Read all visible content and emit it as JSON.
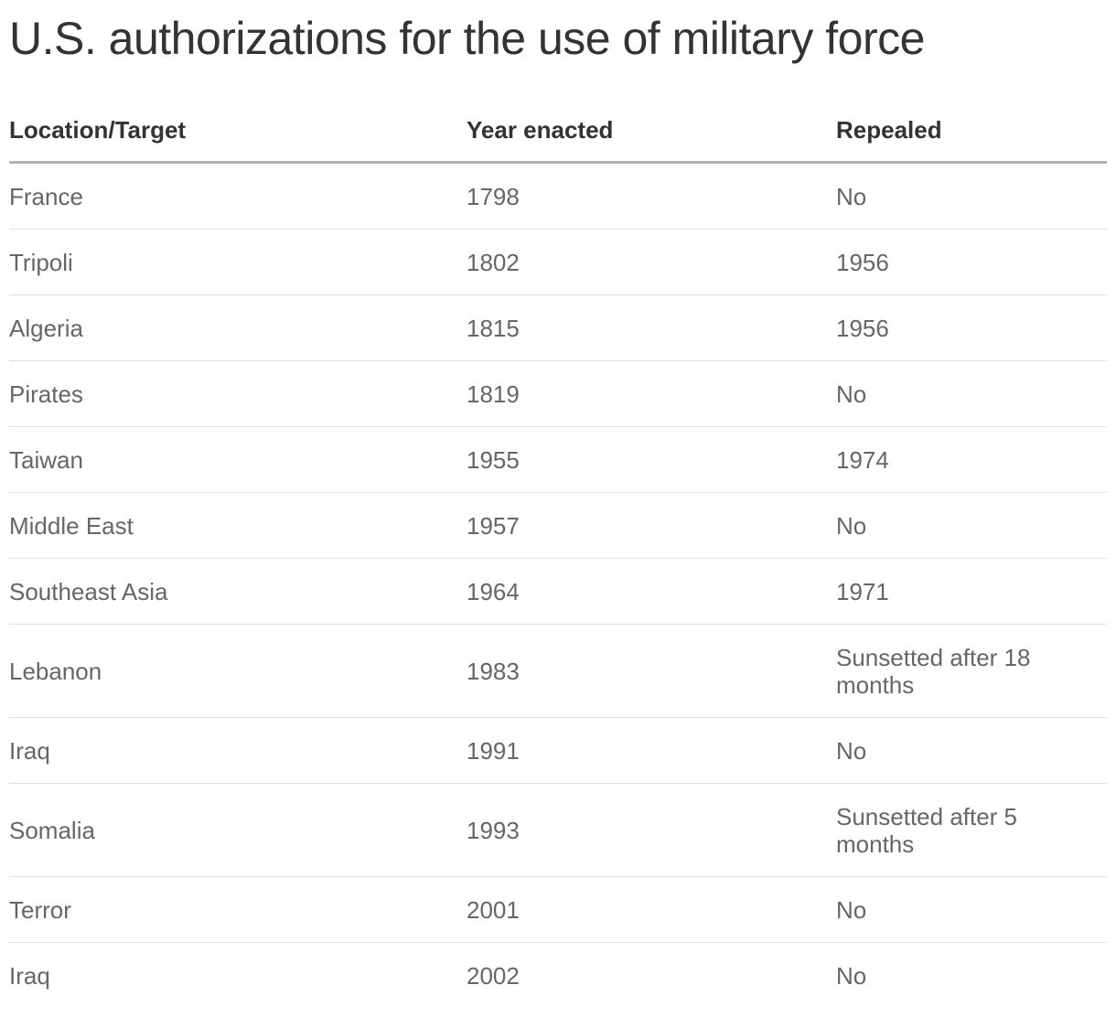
{
  "title": "U.S. authorizations for the use of military force",
  "chart_data": {
    "type": "table",
    "columns": [
      "Location/Target",
      "Year enacted",
      "Repealed"
    ],
    "rows": [
      [
        "France",
        "1798",
        "No"
      ],
      [
        "Tripoli",
        "1802",
        "1956"
      ],
      [
        "Algeria",
        "1815",
        "1956"
      ],
      [
        "Pirates",
        "1819",
        "No"
      ],
      [
        "Taiwan",
        "1955",
        "1974"
      ],
      [
        "Middle East",
        "1957",
        "No"
      ],
      [
        "Southeast Asia",
        "1964",
        "1971"
      ],
      [
        "Lebanon",
        "1983",
        "Sunsetted after 18 months"
      ],
      [
        "Iraq",
        "1991",
        "No"
      ],
      [
        "Somalia",
        "1993",
        "Sunsetted after 5 months"
      ],
      [
        "Terror",
        "2001",
        "No"
      ],
      [
        "Iraq",
        "2002",
        "No"
      ]
    ]
  }
}
